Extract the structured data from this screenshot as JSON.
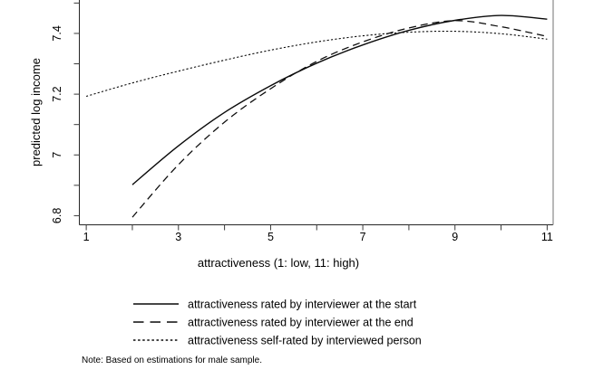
{
  "chart_data": {
    "type": "line",
    "title": "",
    "xlabel": "attractiveness (1: low, 11: high)",
    "ylabel": "predicted log income",
    "note": "Note: Based on estimations for male sample.",
    "xlim": [
      0.85,
      11.13
    ],
    "ylim": [
      6.77,
      7.51
    ],
    "x_ticks_labeled": [
      1,
      3,
      5,
      7,
      9,
      11
    ],
    "x_ticks_minor": [
      2,
      4,
      6,
      8,
      10
    ],
    "y_ticks_labeled": [
      6.8,
      7,
      7.2,
      7.4
    ],
    "y_ticks_minor": [
      6.9,
      7.1,
      7.3,
      7.5
    ],
    "grid": false,
    "legend_position": "below",
    "series": [
      {
        "name": "interviewer-start",
        "label": "attractiveness rated by interviewer at the start",
        "style": "solid",
        "points": [
          [
            2,
            6.902
          ],
          [
            3,
            7.03
          ],
          [
            4,
            7.14
          ],
          [
            5,
            7.228
          ],
          [
            6,
            7.302
          ],
          [
            7,
            7.362
          ],
          [
            8,
            7.41
          ],
          [
            9,
            7.443
          ],
          [
            10,
            7.459
          ],
          [
            11,
            7.447
          ]
        ]
      },
      {
        "name": "interviewer-end",
        "label": "attractiveness rated by interviewer at the end",
        "style": "dashed",
        "points": [
          [
            2,
            6.795
          ],
          [
            3,
            6.968
          ],
          [
            4,
            7.108
          ],
          [
            5,
            7.218
          ],
          [
            6,
            7.308
          ],
          [
            7,
            7.372
          ],
          [
            8,
            7.418
          ],
          [
            9,
            7.442
          ],
          [
            10,
            7.422
          ],
          [
            11,
            7.39
          ]
        ]
      },
      {
        "name": "self-rated",
        "label": "attractiveness self-rated by interviewed person",
        "style": "dotted",
        "points": [
          [
            1,
            7.193
          ],
          [
            2,
            7.237
          ],
          [
            3,
            7.276
          ],
          [
            4,
            7.312
          ],
          [
            5,
            7.345
          ],
          [
            6,
            7.372
          ],
          [
            7,
            7.392
          ],
          [
            8,
            7.404
          ],
          [
            9,
            7.407
          ],
          [
            10,
            7.399
          ],
          [
            11,
            7.381
          ]
        ]
      }
    ],
    "colors": {
      "line": "#0a0a0a",
      "axis": "#262626",
      "frame": "#9a9a9a",
      "text": "#000000",
      "background": "#ffffff"
    }
  }
}
